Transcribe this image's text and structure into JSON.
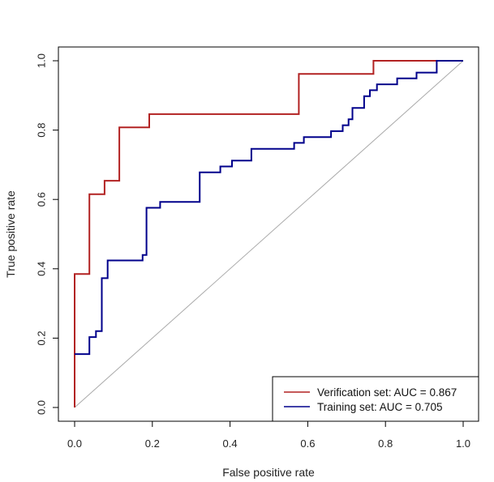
{
  "chart_data": {
    "type": "line",
    "title": "",
    "xlabel": "False positive rate",
    "ylabel": "True positive rate",
    "xlim": [
      0,
      1
    ],
    "ylim": [
      0,
      1
    ],
    "xticks": [
      "0.0",
      "0.2",
      "0.4",
      "0.6",
      "0.8",
      "1.0"
    ],
    "yticks": [
      "0.0",
      "0.2",
      "0.4",
      "0.6",
      "0.8",
      "1.0"
    ],
    "grid": false,
    "legend_position": "bottom-right",
    "diagonal_reference": true,
    "series": [
      {
        "name": "Verification set: AUC = 0.867",
        "color": "#b22222",
        "points": [
          [
            0.0,
            0.0
          ],
          [
            0.0,
            0.385
          ],
          [
            0.038,
            0.385
          ],
          [
            0.038,
            0.615
          ],
          [
            0.077,
            0.615
          ],
          [
            0.077,
            0.654
          ],
          [
            0.115,
            0.654
          ],
          [
            0.115,
            0.808
          ],
          [
            0.192,
            0.808
          ],
          [
            0.192,
            0.846
          ],
          [
            0.577,
            0.846
          ],
          [
            0.577,
            0.962
          ],
          [
            0.769,
            0.962
          ],
          [
            0.769,
            1.0
          ],
          [
            1.0,
            1.0
          ]
        ]
      },
      {
        "name": "Training set: AUC = 0.705",
        "color": "#00008b",
        "points": [
          [
            0.0,
            0.154
          ],
          [
            0.038,
            0.154
          ],
          [
            0.038,
            0.203
          ],
          [
            0.055,
            0.203
          ],
          [
            0.055,
            0.22
          ],
          [
            0.07,
            0.22
          ],
          [
            0.07,
            0.373
          ],
          [
            0.085,
            0.373
          ],
          [
            0.085,
            0.424
          ],
          [
            0.175,
            0.424
          ],
          [
            0.175,
            0.44
          ],
          [
            0.185,
            0.44
          ],
          [
            0.185,
            0.576
          ],
          [
            0.22,
            0.576
          ],
          [
            0.22,
            0.593
          ],
          [
            0.322,
            0.593
          ],
          [
            0.322,
            0.678
          ],
          [
            0.375,
            0.678
          ],
          [
            0.375,
            0.695
          ],
          [
            0.405,
            0.695
          ],
          [
            0.405,
            0.712
          ],
          [
            0.455,
            0.712
          ],
          [
            0.455,
            0.746
          ],
          [
            0.565,
            0.746
          ],
          [
            0.565,
            0.763
          ],
          [
            0.59,
            0.763
          ],
          [
            0.59,
            0.78
          ],
          [
            0.66,
            0.78
          ],
          [
            0.66,
            0.797
          ],
          [
            0.69,
            0.797
          ],
          [
            0.69,
            0.814
          ],
          [
            0.705,
            0.814
          ],
          [
            0.705,
            0.831
          ],
          [
            0.715,
            0.831
          ],
          [
            0.715,
            0.864
          ],
          [
            0.745,
            0.864
          ],
          [
            0.745,
            0.898
          ],
          [
            0.76,
            0.898
          ],
          [
            0.76,
            0.915
          ],
          [
            0.778,
            0.915
          ],
          [
            0.778,
            0.932
          ],
          [
            0.83,
            0.932
          ],
          [
            0.83,
            0.949
          ],
          [
            0.88,
            0.949
          ],
          [
            0.88,
            0.966
          ],
          [
            0.932,
            0.966
          ],
          [
            0.932,
            1.0
          ],
          [
            1.0,
            1.0
          ]
        ]
      }
    ]
  }
}
